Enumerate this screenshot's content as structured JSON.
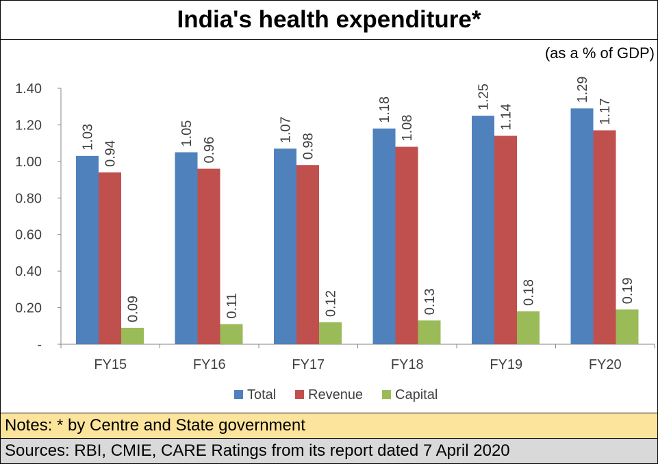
{
  "chart_data": {
    "type": "bar",
    "title": "India's health expenditure*",
    "unit_label": "(as a % of GDP)",
    "categories": [
      "FY15",
      "FY16",
      "FY17",
      "FY18",
      "FY19",
      "FY20"
    ],
    "series": [
      {
        "name": "Total",
        "color": "#4f81bd",
        "values": [
          1.03,
          1.05,
          1.07,
          1.18,
          1.25,
          1.29
        ],
        "labels": [
          "1.03",
          "1.05",
          "1.07",
          "1.18",
          "1.25",
          "1.29"
        ]
      },
      {
        "name": "Revenue",
        "color": "#c0504d",
        "values": [
          0.94,
          0.96,
          0.98,
          1.08,
          1.14,
          1.17
        ],
        "labels": [
          "0.94",
          "0.96",
          "0.98",
          "1.08",
          "1.14",
          "1.17"
        ]
      },
      {
        "name": "Capital",
        "color": "#9bbb59",
        "values": [
          0.09,
          0.11,
          0.12,
          0.13,
          0.18,
          0.19
        ],
        "labels": [
          "0.09",
          "0.11",
          "0.12",
          "0.13",
          "0.18",
          "0.19"
        ]
      }
    ],
    "yticks": [
      {
        "value": 0,
        "label": "-"
      },
      {
        "value": 0.2,
        "label": "0.20"
      },
      {
        "value": 0.4,
        "label": "0.40"
      },
      {
        "value": 0.6,
        "label": "0.60"
      },
      {
        "value": 0.8,
        "label": "0.80"
      },
      {
        "value": 1.0,
        "label": "1.00"
      },
      {
        "value": 1.2,
        "label": "1.20"
      },
      {
        "value": 1.4,
        "label": "1.40"
      }
    ],
    "ylim": [
      0,
      1.4
    ],
    "grid": false,
    "legend_position": "bottom"
  },
  "notes": "Notes: *  by Centre and State government",
  "sources": "Sources: RBI, CMIE, CARE Ratings from its report dated 7 April 2020"
}
